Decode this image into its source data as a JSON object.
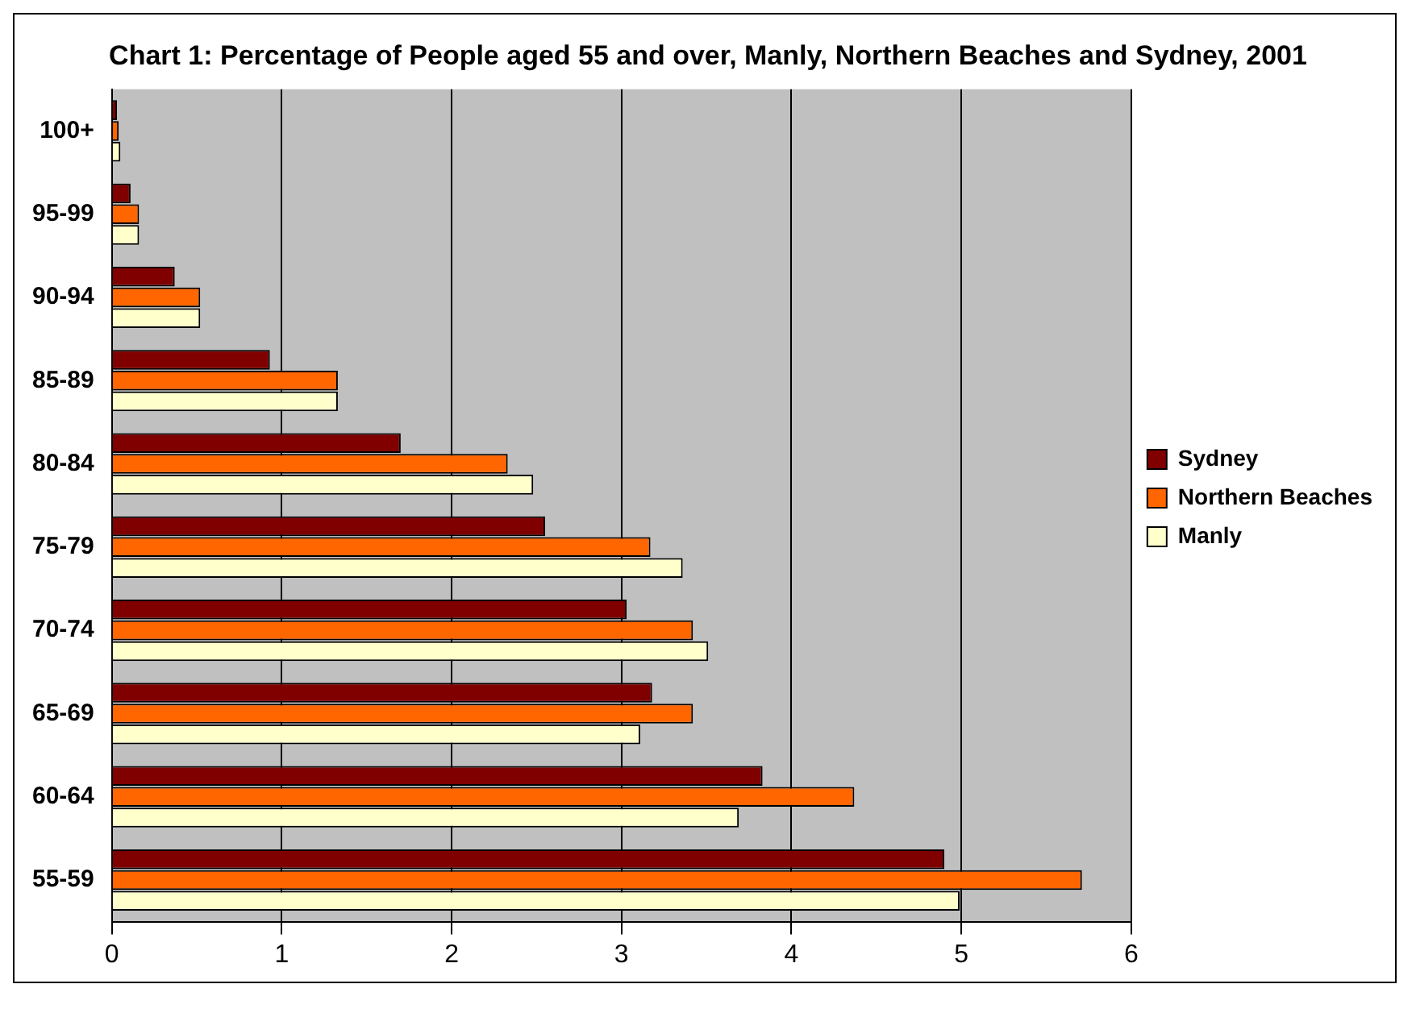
{
  "chart_data": {
    "type": "bar",
    "orientation": "horizontal",
    "title": "Chart 1: Percentage of People aged 55 and over, Manly, Northern Beaches and Sydney, 2001",
    "categories": [
      "100+",
      "95-99",
      "90-94",
      "85-89",
      "80-84",
      "75-79",
      "70-74",
      "65-69",
      "60-64",
      "55-59"
    ],
    "series": [
      {
        "name": "Sydney",
        "color": "#800000",
        "values": [
          0.03,
          0.11,
          0.37,
          0.93,
          1.7,
          2.55,
          3.03,
          3.18,
          3.83,
          4.9
        ]
      },
      {
        "name": "Northern Beaches",
        "color": "#ff6600",
        "values": [
          0.04,
          0.16,
          0.52,
          1.33,
          2.33,
          3.17,
          3.42,
          3.42,
          4.37,
          5.71
        ]
      },
      {
        "name": "Manly",
        "color": "#ffffcc",
        "values": [
          0.05,
          0.16,
          0.52,
          1.33,
          2.48,
          3.36,
          3.51,
          3.11,
          3.69,
          4.99
        ]
      }
    ],
    "xlim": [
      0,
      6
    ],
    "xticks": [
      0,
      1,
      2,
      3,
      4,
      5,
      6
    ],
    "grid": "x",
    "legend": "right"
  }
}
